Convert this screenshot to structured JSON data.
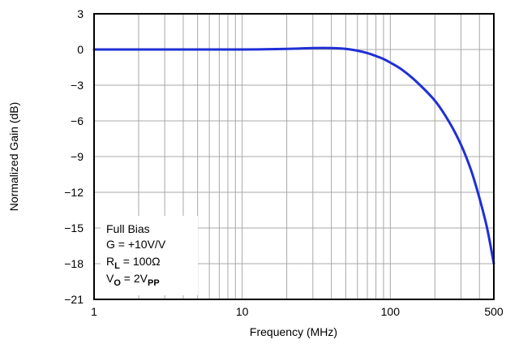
{
  "chart_data": {
    "type": "line",
    "xlabel": "Frequency (MHz)",
    "ylabel": "Normalized Gain (dB)",
    "x_scale": "log",
    "xlim": [
      1,
      500
    ],
    "ylim": [
      -21,
      3
    ],
    "x_ticks": [
      1,
      10,
      100,
      500
    ],
    "x_tick_labels": [
      "1",
      "10",
      "100",
      "500"
    ],
    "y_ticks": [
      3,
      0,
      -3,
      -6,
      -9,
      -12,
      -15,
      -18,
      -21
    ],
    "y_tick_labels": [
      "3",
      "0",
      "−3",
      "−6",
      "−9",
      "−12",
      "−15",
      "−18",
      "−21"
    ],
    "grid": true,
    "series_color": "#1f2fd6",
    "series": [
      {
        "x": [
          1,
          2,
          5,
          10,
          20,
          30,
          40,
          50,
          60,
          70,
          80,
          90,
          100,
          120,
          150,
          200,
          250,
          300,
          350,
          400,
          450,
          500
        ],
        "y": [
          0,
          0,
          0,
          0,
          0.05,
          0.12,
          0.12,
          0.05,
          -0.1,
          -0.3,
          -0.55,
          -0.8,
          -1.1,
          -1.7,
          -2.7,
          -4.3,
          -6.1,
          -8.0,
          -10.1,
          -12.5,
          -15.0,
          -18.0
        ]
      }
    ],
    "annotation": {
      "line1": "Full Bias",
      "line2": "G = +10V/V",
      "r_main": "R",
      "r_sub": "L",
      "r_rest": " = 100Ω",
      "v_main": "V",
      "v_sub": "O",
      "v_rest": " = 2V",
      "v_sub2": "PP"
    }
  }
}
